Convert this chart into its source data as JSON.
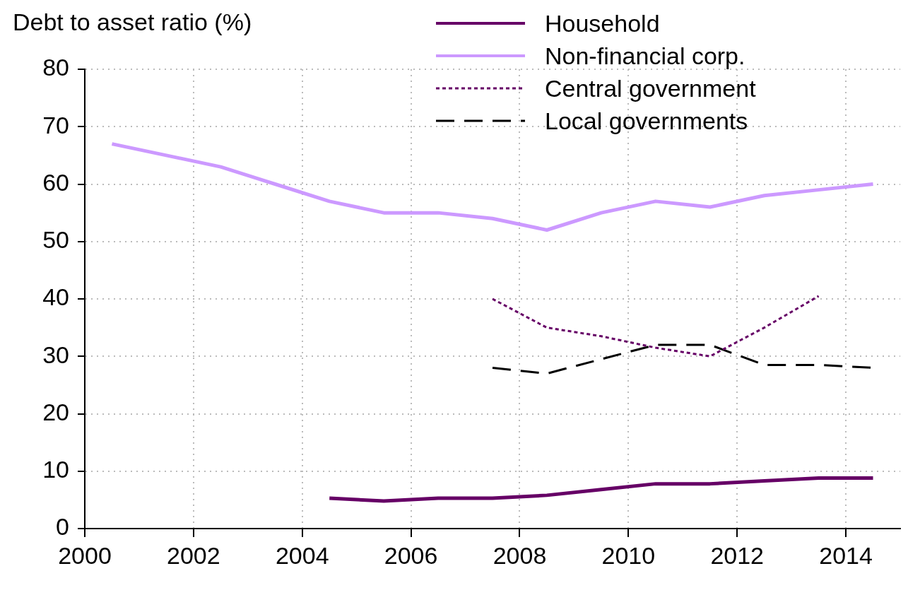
{
  "chart_data": {
    "type": "line",
    "ylabel": "Debt to asset ratio (%)",
    "xlim": [
      2000,
      2015
    ],
    "xticks": [
      2000,
      2002,
      2004,
      2006,
      2008,
      2010,
      2012,
      2014
    ],
    "ylim": [
      0,
      80
    ],
    "yticks": [
      0,
      10,
      20,
      30,
      40,
      50,
      60,
      70,
      80
    ],
    "grid": true,
    "legend": "top right",
    "marker": "none",
    "x": [
      2000.5,
      2001.5,
      2002.5,
      2003.5,
      2004.5,
      2005.5,
      2006.5,
      2007.5,
      2008.5,
      2009.5,
      2010.5,
      2011.5,
      2012.5,
      2013.5,
      2014.5
    ],
    "series": [
      {
        "name": "Household",
        "color": "#660066",
        "line_style": "solid",
        "values": [
          null,
          null,
          null,
          null,
          5.3,
          4.8,
          5.3,
          5.3,
          5.8,
          6.8,
          7.8,
          7.8,
          8.3,
          8.8,
          8.8
        ]
      },
      {
        "name": "Non-financial corp.",
        "color": "#cc99ff",
        "line_style": "solid",
        "values": [
          67,
          65,
          63,
          60,
          57,
          55,
          55,
          54,
          52,
          55,
          57,
          56,
          58,
          59,
          60
        ]
      },
      {
        "name": "Central government",
        "color": "#660066",
        "line_style": "dotted",
        "values": [
          null,
          null,
          null,
          null,
          null,
          null,
          null,
          40,
          35,
          33.5,
          31.5,
          30,
          35,
          40.5,
          null
        ]
      },
      {
        "name": "Local governments",
        "color": "#000000",
        "line_style": "dashed",
        "values": [
          null,
          null,
          null,
          null,
          null,
          null,
          null,
          28,
          27,
          29.5,
          32,
          32,
          28.5,
          28.5,
          28
        ]
      }
    ]
  }
}
